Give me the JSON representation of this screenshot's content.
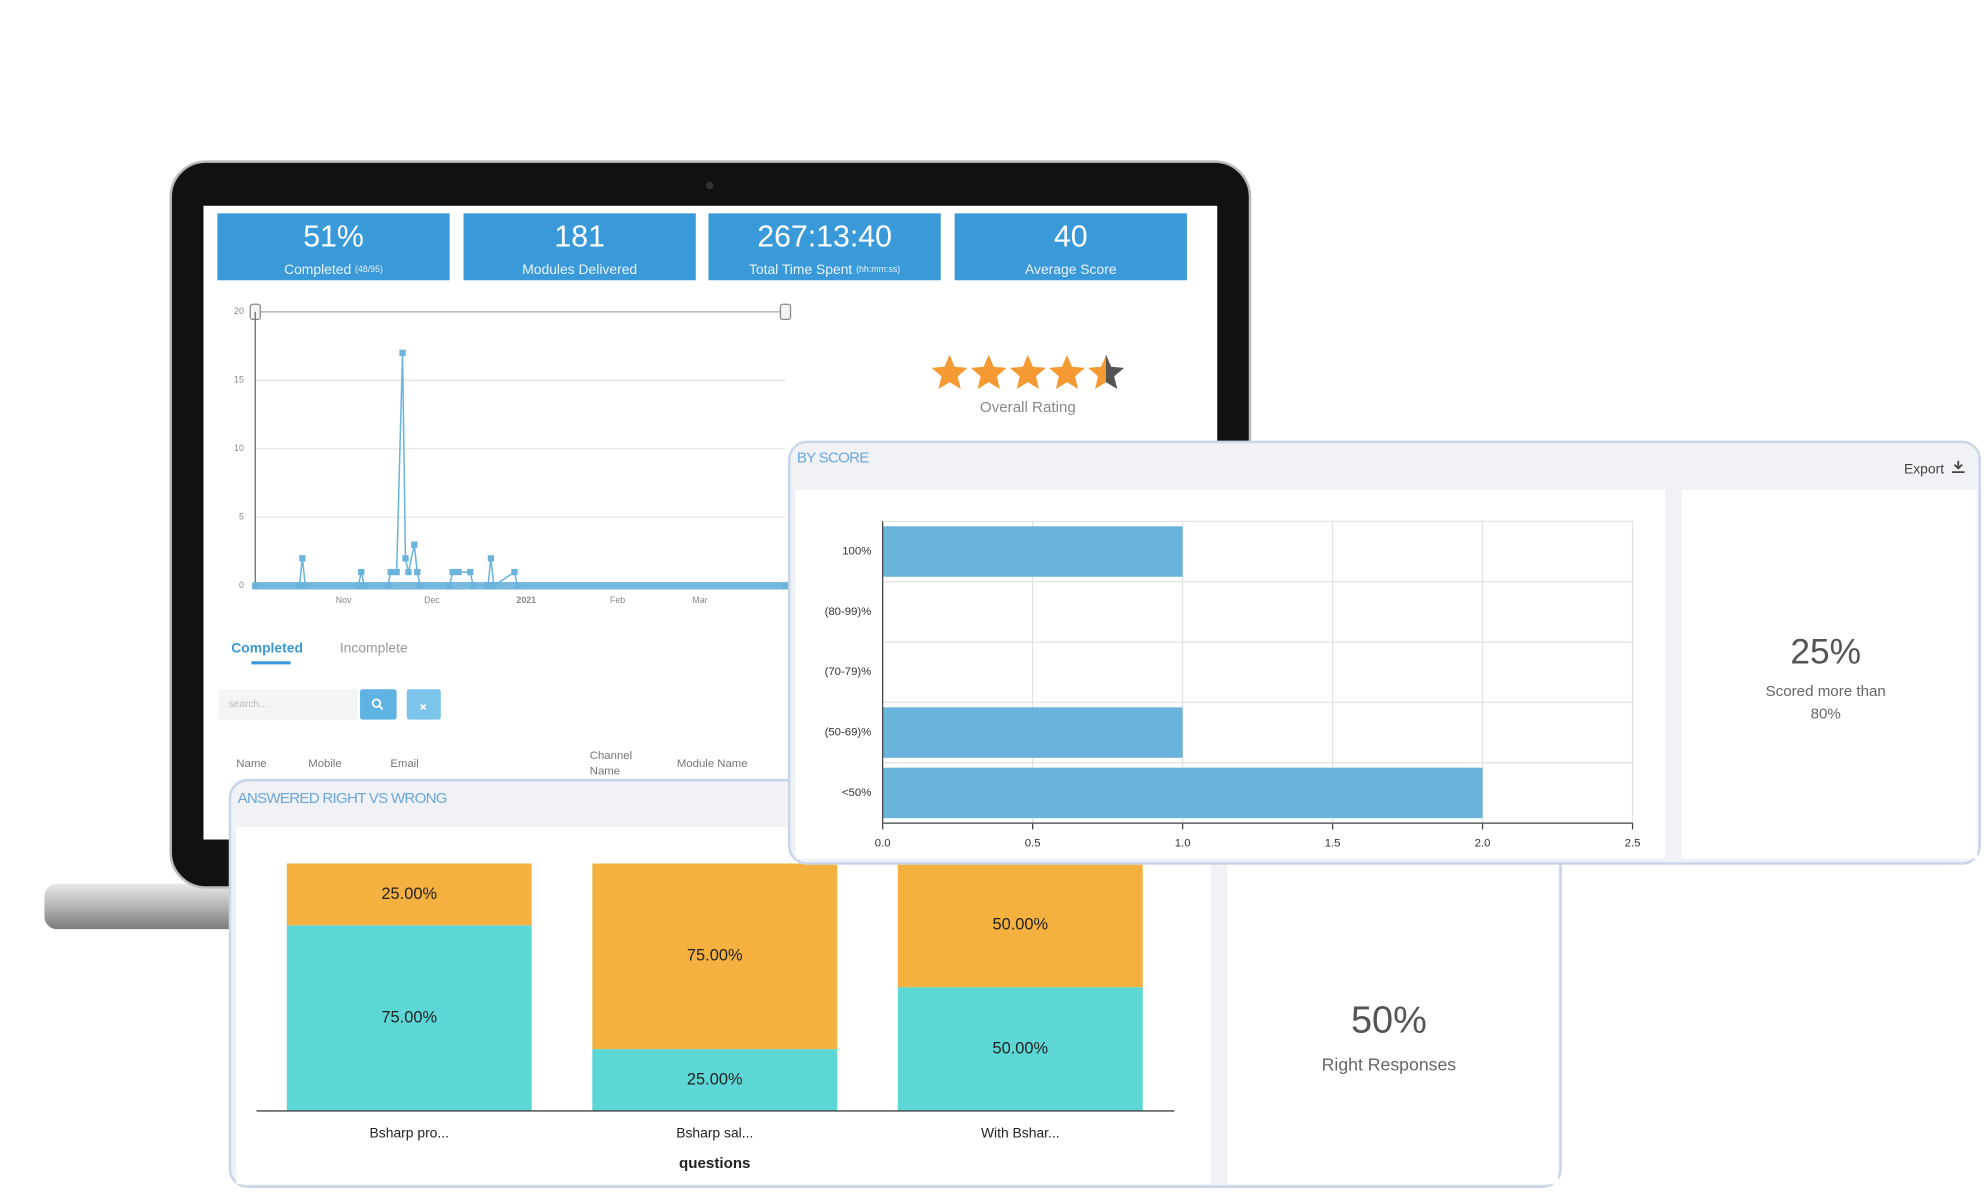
{
  "kpis": [
    {
      "value": "51%",
      "label": "Completed",
      "sub": "(48/95)"
    },
    {
      "value": "181",
      "label": "Modules Delivered"
    },
    {
      "value": "267:13:40",
      "label": "Total Time Spent",
      "sub": "(hh:mm:ss)"
    },
    {
      "value": "40",
      "label": "Average Score"
    }
  ],
  "rating": {
    "label": "Overall Rating",
    "value": 4.5
  },
  "tabs": [
    "Completed",
    "Incomplete"
  ],
  "search_placeholder": "search...",
  "table_headers": [
    "Name",
    "Mobile",
    "Email",
    "Channel Name",
    "Module Name"
  ],
  "by_score": {
    "title": "BY SCORE",
    "export": "Export",
    "stat": "25%",
    "stat_label": "Scored more than 80%"
  },
  "right_wrong": {
    "title": "ANSWERED RIGHT VS WRONG",
    "stat": "50%",
    "stat_label": "Right Responses"
  },
  "chart_data": [
    {
      "type": "line",
      "color": "#6ab4dc",
      "x": [
        0,
        15,
        16,
        17,
        35,
        36,
        37,
        45,
        46,
        48,
        50,
        51,
        52,
        54,
        55,
        56,
        66,
        67,
        69,
        73,
        74,
        79,
        80,
        81,
        88,
        89,
        180
      ],
      "values": [
        0,
        0,
        2,
        0,
        0,
        1,
        0,
        0,
        1,
        1,
        17,
        2,
        1,
        3,
        1,
        0,
        0,
        1,
        1,
        1,
        0,
        0,
        2,
        0,
        1,
        0,
        0
      ],
      "xlim": [
        0,
        180
      ],
      "xticks": [
        {
          "value": 30,
          "label": "Nov"
        },
        {
          "value": 60,
          "label": "Dec"
        },
        {
          "value": 92,
          "label": "2021"
        },
        {
          "value": 123,
          "label": "Feb"
        },
        {
          "value": 151,
          "label": "Mar"
        }
      ],
      "ylim": [
        0,
        20
      ],
      "yticks": [
        0,
        5,
        10,
        15,
        20
      ],
      "grid": true
    },
    {
      "type": "hbar",
      "color": "#6ab4dc",
      "categories": [
        "100%",
        "(80-99)%",
        "(70-79)%",
        "(50-69)%",
        "<50%"
      ],
      "values": [
        1,
        0,
        0,
        1,
        2
      ],
      "xlim": [
        0,
        2.5
      ],
      "xticks": [
        {
          "value": 0,
          "label": "0.0"
        },
        0.5,
        {
          "value": 1,
          "label": "1.0"
        },
        1.5,
        {
          "value": 2,
          "label": "2.0"
        },
        2.5
      ],
      "grid": true
    },
    {
      "type": "stacked_bar",
      "categories": [
        "Bsharp pro...",
        "Bsharp sal...",
        "With Bshar..."
      ],
      "x_label": "questions",
      "ylim": [
        0,
        100
      ],
      "series": [
        {
          "color": "#5dd6d6",
          "values": [
            75,
            25,
            50
          ],
          "value_labels": [
            "75.00%",
            "25.00%",
            "50.00%"
          ]
        },
        {
          "color": "#f5b13f",
          "values": [
            25,
            75,
            50
          ],
          "value_labels": [
            "25.00%",
            "75.00%",
            "50.00%"
          ]
        }
      ]
    }
  ]
}
